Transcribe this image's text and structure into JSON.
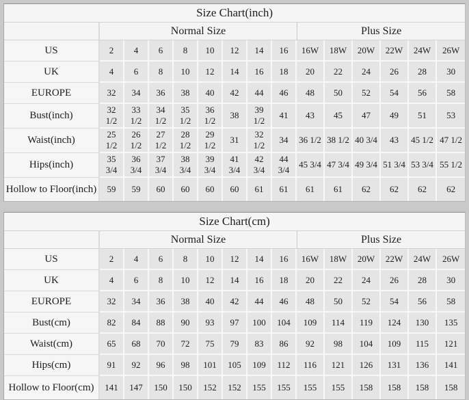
{
  "chart_data": [
    {
      "type": "table",
      "title": "Size Chart(inch)",
      "group_headers": [
        {
          "label": "Normal Size",
          "span": 8
        },
        {
          "label": "Plus Size",
          "span": 6
        }
      ],
      "rows": [
        {
          "label": "US",
          "values": [
            "2",
            "4",
            "6",
            "8",
            "10",
            "12",
            "14",
            "16",
            "16W",
            "18W",
            "20W",
            "22W",
            "24W",
            "26W"
          ]
        },
        {
          "label": "UK",
          "values": [
            "4",
            "6",
            "8",
            "10",
            "12",
            "14",
            "16",
            "18",
            "20",
            "22",
            "24",
            "26",
            "28",
            "30"
          ]
        },
        {
          "label": "EUROPE",
          "values": [
            "32",
            "34",
            "36",
            "38",
            "40",
            "42",
            "44",
            "46",
            "48",
            "50",
            "52",
            "54",
            "56",
            "58"
          ]
        },
        {
          "label": "Bust(inch)",
          "values": [
            "32 1/2",
            "33 1/2",
            "34 1/2",
            "35 1/2",
            "36 1/2",
            "38",
            "39 1/2",
            "41",
            "43",
            "45",
            "47",
            "49",
            "51",
            "53"
          ]
        },
        {
          "label": "Waist(inch)",
          "values": [
            "25 1/2",
            "26 1/2",
            "27 1/2",
            "28 1/2",
            "29 1/2",
            "31",
            "32 1/2",
            "34",
            "36 1/2",
            "38 1/2",
            "40 3/4",
            "43",
            "45 1/2",
            "47 1/2"
          ]
        },
        {
          "label": "Hips(inch)",
          "values": [
            "35 3/4",
            "36 3/4",
            "37 3/4",
            "38 3/4",
            "39 3/4",
            "41 3/4",
            "42 3/4",
            "44 3/4",
            "45 3/4",
            "47 3/4",
            "49 3/4",
            "51 3/4",
            "53 3/4",
            "55 1/2"
          ]
        },
        {
          "label": "Hollow to Floor(inch)",
          "values": [
            "59",
            "59",
            "60",
            "60",
            "60",
            "60",
            "61",
            "61",
            "61",
            "61",
            "62",
            "62",
            "62",
            "62"
          ]
        }
      ]
    },
    {
      "type": "table",
      "title": "Size Chart(cm)",
      "group_headers": [
        {
          "label": "Normal Size",
          "span": 8
        },
        {
          "label": "Plus Size",
          "span": 6
        }
      ],
      "rows": [
        {
          "label": "US",
          "values": [
            "2",
            "4",
            "6",
            "8",
            "10",
            "12",
            "14",
            "16",
            "16W",
            "18W",
            "20W",
            "22W",
            "24W",
            "26W"
          ]
        },
        {
          "label": "UK",
          "values": [
            "4",
            "6",
            "8",
            "10",
            "12",
            "14",
            "16",
            "18",
            "20",
            "22",
            "24",
            "26",
            "28",
            "30"
          ]
        },
        {
          "label": "EUROPE",
          "values": [
            "32",
            "34",
            "36",
            "38",
            "40",
            "42",
            "44",
            "46",
            "48",
            "50",
            "52",
            "54",
            "56",
            "58"
          ]
        },
        {
          "label": "Bust(cm)",
          "values": [
            "82",
            "84",
            "88",
            "90",
            "93",
            "97",
            "100",
            "104",
            "109",
            "114",
            "119",
            "124",
            "130",
            "135"
          ]
        },
        {
          "label": "Waist(cm)",
          "values": [
            "65",
            "68",
            "70",
            "72",
            "75",
            "79",
            "83",
            "86",
            "92",
            "98",
            "104",
            "109",
            "115",
            "121"
          ]
        },
        {
          "label": "Hips(cm)",
          "values": [
            "91",
            "92",
            "96",
            "98",
            "101",
            "105",
            "109",
            "112",
            "116",
            "121",
            "126",
            "131",
            "136",
            "141"
          ]
        },
        {
          "label": "Hollow to Floor(cm)",
          "values": [
            "141",
            "147",
            "150",
            "150",
            "152",
            "152",
            "155",
            "155",
            "155",
            "155",
            "158",
            "158",
            "158",
            "158"
          ]
        }
      ]
    }
  ]
}
